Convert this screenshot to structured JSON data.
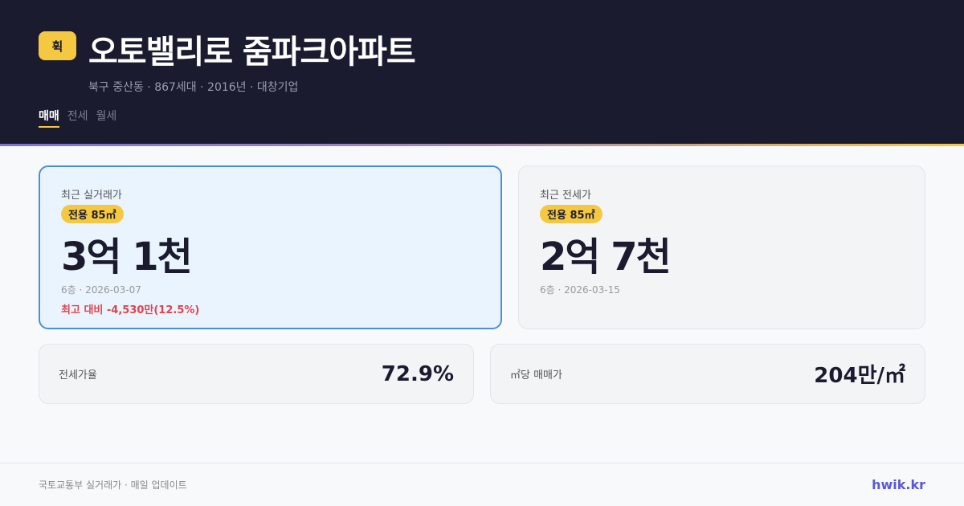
{
  "header": {
    "logo": "휙",
    "title": "오토밸리로 줌파크아파트",
    "subtitle": "북구 중산동 · 867세대 · 2016년 · 대창기업",
    "tabs": [
      {
        "label": "매매",
        "active": true
      },
      {
        "label": "전세"
      },
      {
        "label": "월세"
      }
    ]
  },
  "sale_card": {
    "label": "최근 실거래가",
    "area": "전용 85㎡",
    "price": "3억 1천",
    "meta": "6층 · 2026-03-07",
    "diff": "최고 대비 -4,530만(12.5%)"
  },
  "jeonse_card": {
    "label": "최근 전세가",
    "area": "전용 85㎡",
    "price": "2억 7천",
    "meta": "6층 · 2026-03-15"
  },
  "stats": [
    {
      "label": "전세가율",
      "value": "72.9%"
    },
    {
      "label": "㎡당 매매가",
      "value": "204만/㎡"
    }
  ],
  "footer": {
    "source": "국토교통부 실거래가 · 매일 업데이트",
    "brand": "hwik.kr"
  },
  "colors": {
    "accent": "#f5c842",
    "header_bg": "#1b1b30",
    "highlight_border": "#4a8fdc",
    "negative": "#e0434b",
    "brand": "#5b57d6"
  }
}
